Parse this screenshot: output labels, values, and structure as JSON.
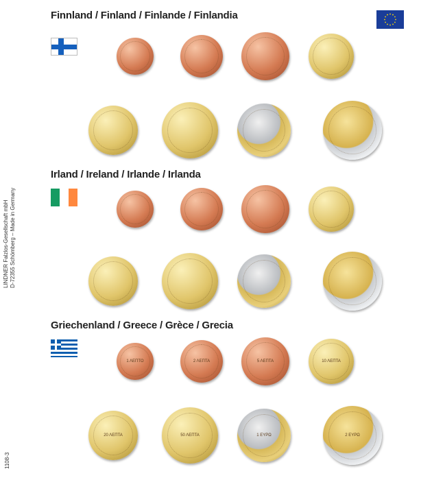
{
  "side": {
    "line1": "LINDNER Falzlos-Gesellschaft mbH",
    "line2": "D-72355 Schömberg – Made in Germany",
    "code": "1108-3"
  },
  "sections": [
    {
      "title": "Finnland / Finland / Finlande / Finlandia",
      "flag": "finland",
      "coins": [
        "1c",
        "2c",
        "5c",
        "10c",
        "20c",
        "50c",
        "1€",
        "2€"
      ]
    },
    {
      "title": "Irland / Ireland / Irlande / Irlanda",
      "flag": "ireland",
      "coins": [
        "1c",
        "2c",
        "5c",
        "10c",
        "20c",
        "50c",
        "1€",
        "2€"
      ]
    },
    {
      "title": "Griechenland / Greece / Grèce / Grecia",
      "flag": "greece",
      "coins": [
        "1c",
        "2c",
        "5c",
        "10c",
        "20c",
        "50c",
        "1€",
        "2€"
      ],
      "inscriptions": [
        "1 ΛΕΠΤΟ",
        "2 ΛΕΠΤΑ",
        "5 ΛΕΠΤΑ",
        "10 ΛΕΠΤΑ",
        "20 ΛΕΠΤΑ",
        "50 ΛΕΠΤΑ",
        "1 ΕΥΡΩ",
        "2 ΕΥΡΩ"
      ]
    }
  ],
  "colors": {
    "eu_blue": "#1a3d99",
    "finland_blue": "#1560bd",
    "ireland_green": "#169b62",
    "ireland_orange": "#ff883e",
    "greece_blue": "#0d5eaf"
  }
}
